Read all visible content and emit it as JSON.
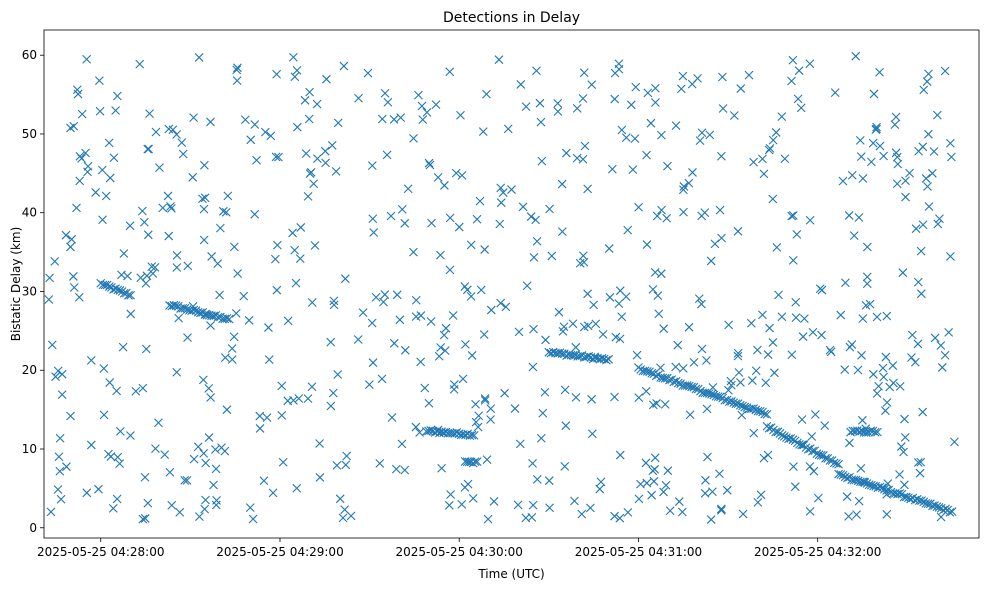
{
  "chart_data": {
    "type": "scatter",
    "title": "Detections in Delay",
    "xlabel": "Time (UTC)",
    "ylabel": "Bistatic Delay (km)",
    "x_axis_type": "datetime",
    "x_ticks": [
      "2025-05-25 04:28:00",
      "2025-05-25 04:29:00",
      "2025-05-25 04:30:00",
      "2025-05-25 04:31:00",
      "2025-05-25 04:32:00"
    ],
    "y_ticks": [
      0,
      10,
      20,
      30,
      40,
      50,
      60
    ],
    "xlim": [
      "2025-05-25 04:27:41",
      "2025-05-25 04:32:54"
    ],
    "ylim": [
      -1.3,
      63.2
    ],
    "grid": false,
    "marker": "x",
    "color": "#1f77b4",
    "series": [
      {
        "kind": "track",
        "x": [
          "2025-05-25 04:28:00",
          "2025-05-25 04:28:10"
        ],
        "y": [
          31.0,
          29.5
        ]
      },
      {
        "kind": "track",
        "x": [
          "2025-05-25 04:28:23",
          "2025-05-25 04:28:43"
        ],
        "y": [
          28.3,
          26.4
        ]
      },
      {
        "kind": "track",
        "x": [
          "2025-05-25 04:29:49",
          "2025-05-25 04:30:05"
        ],
        "y": [
          12.3,
          11.8
        ]
      },
      {
        "kind": "track",
        "x": [
          "2025-05-25 04:30:30",
          "2025-05-25 04:30:50"
        ],
        "y": [
          22.3,
          21.3
        ]
      },
      {
        "kind": "track",
        "x": [
          "2025-05-25 04:31:00",
          "2025-05-25 04:31:43"
        ],
        "y": [
          20.2,
          14.4
        ]
      },
      {
        "kind": "track",
        "x": [
          "2025-05-25 04:31:43",
          "2025-05-25 04:32:07"
        ],
        "y": [
          12.9,
          8.0
        ]
      },
      {
        "kind": "track",
        "x": [
          "2025-05-25 04:32:07",
          "2025-05-25 04:32:45"
        ],
        "y": [
          6.8,
          2.0
        ]
      },
      {
        "kind": "track",
        "x": [
          "2025-05-25 04:32:11",
          "2025-05-25 04:32:20"
        ],
        "y": [
          12.2,
          12.2
        ]
      },
      {
        "kind": "track",
        "x": [
          "2025-05-25 04:30:02",
          "2025-05-25 04:30:06"
        ],
        "y": [
          8.3,
          8.3
        ]
      },
      {
        "kind": "clutter",
        "x": [
          "2025-05-25 04:27:42",
          "2025-05-25 04:32:46"
        ],
        "y": [
          1.0,
          60.0
        ]
      }
    ]
  }
}
